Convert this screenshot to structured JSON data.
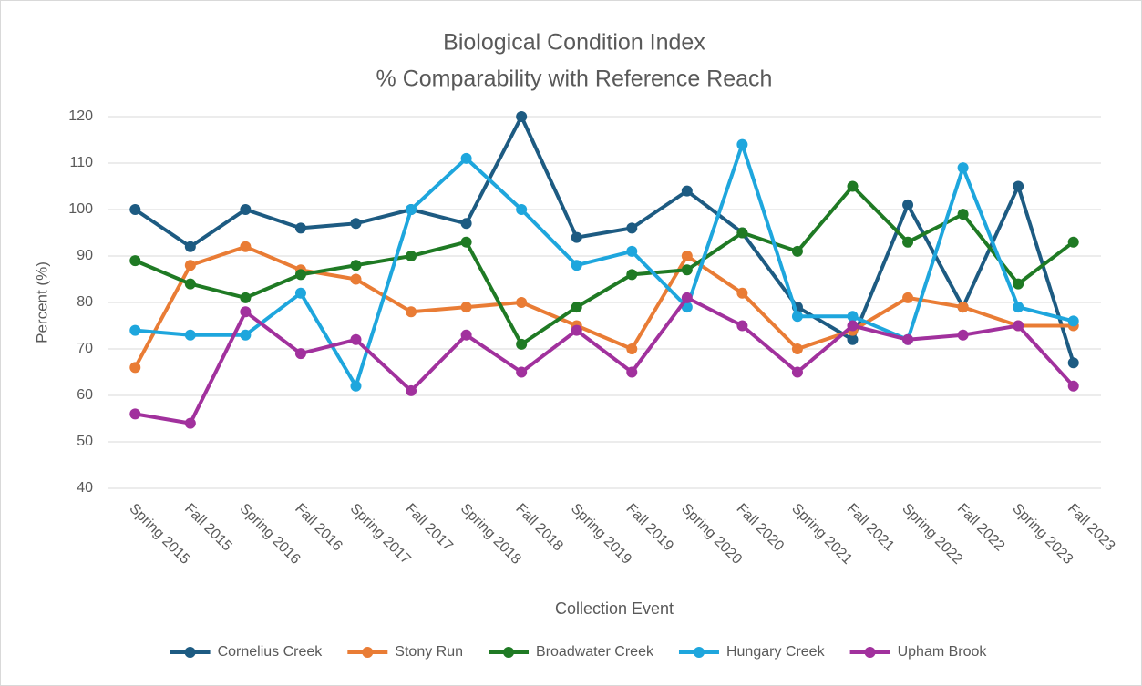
{
  "chart_data": {
    "type": "line",
    "title": "Biological Condition Index",
    "subtitle": "% Comparability with Reference Reach",
    "x_label": "Collection Event",
    "y_label": "Percent (%)",
    "categories": [
      "Spring 2015",
      "Fall 2015",
      "Spring 2016",
      "Fall 2016",
      "Spring 2017",
      "Fall 2017",
      "Spring 2018",
      "Fall 2018",
      "Spring 2019",
      "Fall 2019",
      "Spring 2020",
      "Fall 2020",
      "Spring 2021",
      "Fall 2021",
      "Spring 2022",
      "Fall 2022",
      "Spring 2023",
      "Fall 2023"
    ],
    "series": [
      {
        "name": "Cornelius Creek",
        "color": "#1d5b82",
        "values": [
          100,
          92,
          100,
          96,
          97,
          100,
          97,
          120,
          94,
          96,
          104,
          95,
          79,
          72,
          101,
          79,
          105,
          67
        ]
      },
      {
        "name": "Stony Run",
        "color": "#e97c35",
        "values": [
          66,
          88,
          92,
          87,
          85,
          78,
          79,
          80,
          75,
          70,
          90,
          82,
          70,
          74,
          81,
          79,
          75,
          75
        ]
      },
      {
        "name": "Broadwater Creek",
        "color": "#1f7a24",
        "values": [
          89,
          84,
          81,
          86,
          88,
          90,
          93,
          71,
          79,
          86,
          87,
          95,
          91,
          105,
          93,
          99,
          84,
          93
        ]
      },
      {
        "name": "Hungary Creek",
        "color": "#1ea6dd",
        "values": [
          74,
          73,
          73,
          82,
          62,
          100,
          111,
          100,
          88,
          91,
          79,
          114,
          77,
          77,
          72,
          109,
          79,
          76
        ]
      },
      {
        "name": "Upham Brook",
        "color": "#a1319d",
        "values": [
          56,
          54,
          78,
          69,
          72,
          61,
          73,
          65,
          74,
          65,
          81,
          75,
          65,
          75,
          72,
          73,
          75,
          62
        ]
      }
    ],
    "ylim": [
      40,
      120
    ],
    "yticks": [
      40,
      50,
      60,
      70,
      80,
      90,
      100,
      110,
      120
    ],
    "grid": true,
    "legend": "bottom"
  }
}
